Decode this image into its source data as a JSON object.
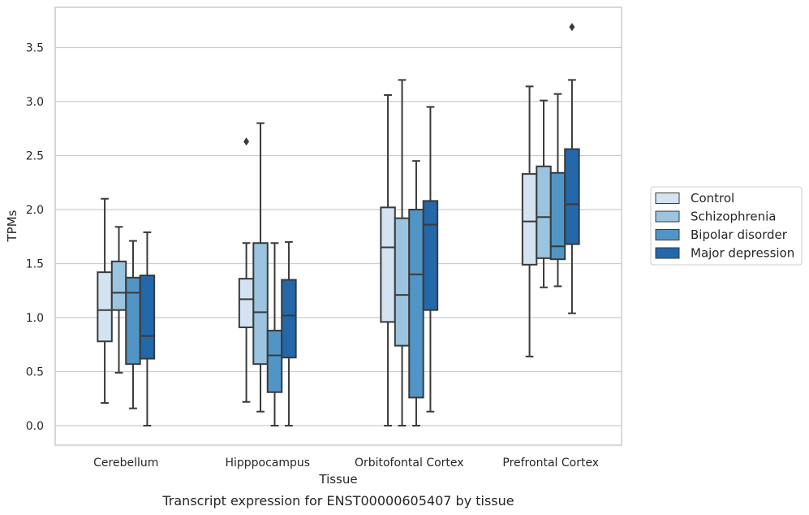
{
  "chart_data": {
    "type": "boxplot",
    "title": "",
    "caption": "Transcript expression for ENST00000605407 by tissue",
    "xlabel": "Tissue",
    "ylabel": "TPMs",
    "ylim": [
      -0.18,
      3.9
    ],
    "yticks": [
      "0.0",
      "0.5",
      "1.0",
      "1.5",
      "2.0",
      "2.5",
      "3.0",
      "3.5"
    ],
    "grid": "horizontal",
    "legend_position": "right",
    "categories": [
      "Cerebellum",
      "Hipppocampus",
      "Orbitofontal Cortex",
      "Prefrontal Cortex"
    ],
    "series": [
      {
        "name": "Control",
        "color": "#d3e3f2",
        "boxes": [
          {
            "whislo": 0.21,
            "q1": 0.78,
            "med": 1.07,
            "q3": 1.42,
            "whishi": 2.1,
            "fliers": []
          },
          {
            "whislo": 0.22,
            "q1": 0.91,
            "med": 1.17,
            "q3": 1.36,
            "whishi": 1.69,
            "fliers": [
              2.63
            ]
          },
          {
            "whislo": 0.0,
            "q1": 0.96,
            "med": 1.65,
            "q3": 2.02,
            "whishi": 3.06,
            "fliers": []
          },
          {
            "whislo": 0.64,
            "q1": 1.49,
            "med": 1.89,
            "q3": 2.33,
            "whishi": 3.14,
            "fliers": []
          }
        ]
      },
      {
        "name": "Schizophrenia",
        "color": "#9ac4df",
        "boxes": [
          {
            "whislo": 0.49,
            "q1": 1.07,
            "med": 1.23,
            "q3": 1.52,
            "whishi": 1.84,
            "fliers": []
          },
          {
            "whislo": 0.13,
            "q1": 0.57,
            "med": 1.05,
            "q3": 1.69,
            "whishi": 2.8,
            "fliers": []
          },
          {
            "whislo": 0.0,
            "q1": 0.74,
            "med": 1.21,
            "q3": 1.92,
            "whishi": 3.2,
            "fliers": []
          },
          {
            "whislo": 1.28,
            "q1": 1.55,
            "med": 1.93,
            "q3": 2.4,
            "whishi": 3.01,
            "fliers": []
          }
        ]
      },
      {
        "name": "Bipolar disorder",
        "color": "#5195c6",
        "boxes": [
          {
            "whislo": 0.16,
            "q1": 0.57,
            "med": 1.23,
            "q3": 1.37,
            "whishi": 1.71,
            "fliers": []
          },
          {
            "whislo": 0.0,
            "q1": 0.31,
            "med": 0.65,
            "q3": 0.88,
            "whishi": 1.69,
            "fliers": []
          },
          {
            "whislo": 0.0,
            "q1": 0.26,
            "med": 1.4,
            "q3": 2.0,
            "whishi": 2.45,
            "fliers": []
          },
          {
            "whislo": 1.29,
            "q1": 1.54,
            "med": 1.66,
            "q3": 2.34,
            "whishi": 3.07,
            "fliers": []
          }
        ]
      },
      {
        "name": "Major depression",
        "color": "#2368a9",
        "boxes": [
          {
            "whislo": 0.0,
            "q1": 0.62,
            "med": 0.83,
            "q3": 1.39,
            "whishi": 1.79,
            "fliers": []
          },
          {
            "whislo": 0.0,
            "q1": 0.63,
            "med": 1.02,
            "q3": 1.35,
            "whishi": 1.7,
            "fliers": []
          },
          {
            "whislo": 0.13,
            "q1": 1.07,
            "med": 1.86,
            "q3": 2.08,
            "whishi": 2.95,
            "fliers": []
          },
          {
            "whislo": 1.04,
            "q1": 1.68,
            "med": 2.05,
            "q3": 2.56,
            "whishi": 3.2,
            "fliers": [
              3.69
            ]
          }
        ]
      }
    ]
  }
}
